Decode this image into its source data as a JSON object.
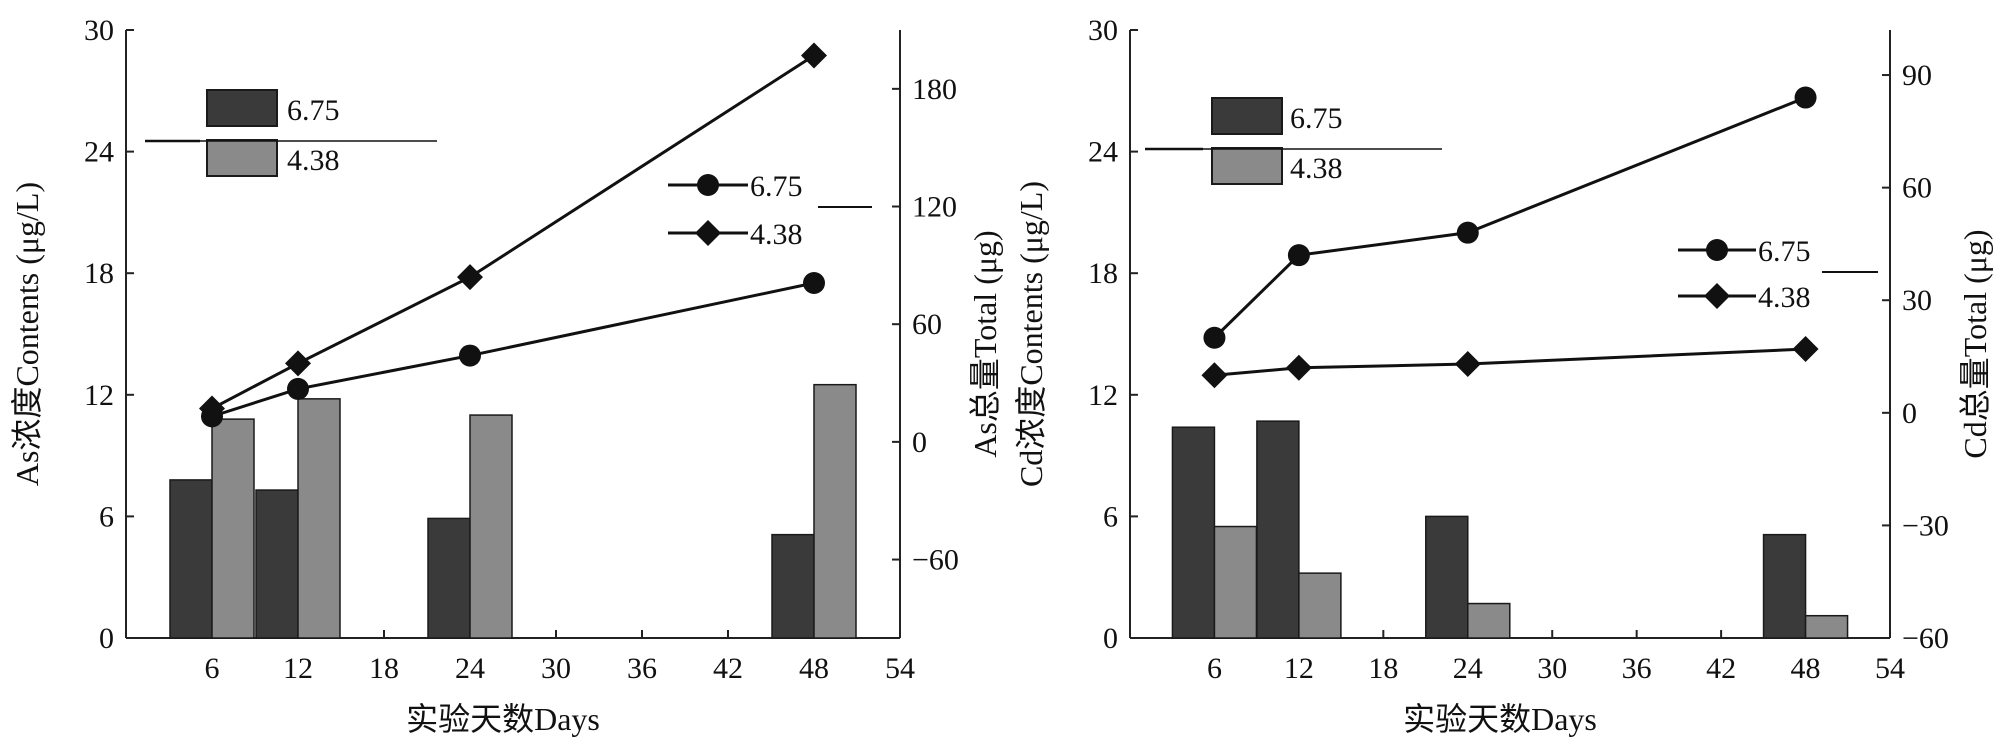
{
  "chart_data": [
    {
      "type": "bar+line",
      "xlabel": "实验天数Days",
      "ylabel_left": "As浓度Contents (μg/L)",
      "ylabel_right": "As总量Total (μg)",
      "x_ticks": [
        6,
        12,
        18,
        24,
        30,
        36,
        42,
        48,
        54
      ],
      "y_left_ticks": [
        0,
        6,
        12,
        18,
        24,
        30
      ],
      "y_right_ticks": [
        -60,
        0,
        60,
        120,
        180
      ],
      "x_range": [
        0,
        54
      ],
      "y_left_range": [
        0,
        30
      ],
      "y_right_range": [
        -100,
        210
      ],
      "bar_series": [
        {
          "name": "6.75",
          "color": "#3a3a3a",
          "x": [
            6,
            12,
            24,
            48
          ],
          "values": [
            7.8,
            7.3,
            5.9,
            5.1
          ]
        },
        {
          "name": "4.38",
          "color": "#8a8a8a",
          "x": [
            6,
            12,
            24,
            48
          ],
          "values": [
            10.8,
            11.8,
            11.0,
            12.5
          ]
        }
      ],
      "line_series": [
        {
          "name": "6.75",
          "marker": "circle",
          "x": [
            6,
            12,
            24,
            48
          ],
          "values": [
            13,
            27,
            44,
            81
          ]
        },
        {
          "name": "4.38",
          "marker": "diamond",
          "x": [
            6,
            12,
            24,
            48
          ],
          "values": [
            17,
            40,
            84,
            197
          ]
        }
      ]
    },
    {
      "type": "bar+line",
      "xlabel": "实验天数Days",
      "ylabel_left": "Cd浓度Contents (μg/L)",
      "ylabel_right": "Cd总量Total (μg)",
      "x_ticks": [
        6,
        12,
        18,
        24,
        30,
        36,
        42,
        48,
        54
      ],
      "y_left_ticks": [
        0,
        6,
        12,
        18,
        24,
        30
      ],
      "y_right_ticks": [
        -60,
        -30,
        0,
        30,
        60,
        90
      ],
      "x_range": [
        0,
        54
      ],
      "y_left_range": [
        0,
        30
      ],
      "y_right_range": [
        -60,
        102
      ],
      "bar_series": [
        {
          "name": "6.75",
          "color": "#3a3a3a",
          "x": [
            6,
            12,
            24,
            48
          ],
          "values": [
            10.4,
            10.7,
            6.0,
            5.1
          ]
        },
        {
          "name": "4.38",
          "color": "#8a8a8a",
          "x": [
            6,
            12,
            24,
            48
          ],
          "values": [
            5.5,
            3.2,
            1.7,
            1.1
          ]
        }
      ],
      "line_series": [
        {
          "name": "6.75",
          "marker": "circle",
          "x": [
            6,
            12,
            24,
            48
          ],
          "values": [
            20,
            42,
            48,
            84
          ]
        },
        {
          "name": "4.38",
          "marker": "diamond",
          "x": [
            6,
            12,
            24,
            48
          ],
          "values": [
            10,
            12,
            13,
            17
          ]
        }
      ]
    }
  ]
}
